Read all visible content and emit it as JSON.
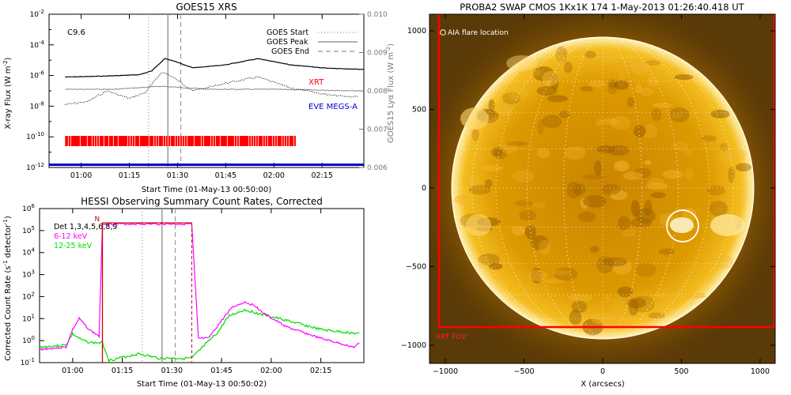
{
  "goes_panel": {
    "title": "GOES15 XRS",
    "flare_class": "C9.6",
    "xlabel": "Start Time (01-May-13 00:50:00)",
    "ylabel_left": "X-ray Flux (W m",
    "ylabel_left_sup": "-2",
    "ylabel_right": "GOES15 Lyα Flux (W m",
    "ylabel_right_sup": "-2",
    "left_ticks": [
      {
        "base": "10",
        "exp": "-2",
        "v": -2
      },
      {
        "base": "10",
        "exp": "-4",
        "v": -4
      },
      {
        "base": "10",
        "exp": "-6",
        "v": -6
      },
      {
        "base": "10",
        "exp": "-8",
        "v": -8
      },
      {
        "base": "10",
        "exp": "-10",
        "v": -10
      },
      {
        "base": "10",
        "exp": "-12",
        "v": -12
      }
    ],
    "right_ticks": [
      "0.010",
      "0.009",
      "0.008",
      "0.007",
      "0.006"
    ],
    "x_ticks": [
      "01:00",
      "01:15",
      "01:30",
      "01:45",
      "02:00",
      "02:15"
    ],
    "legend": [
      {
        "label": "GOES Start",
        "style": "dotted"
      },
      {
        "label": "GOES Peak",
        "style": "solid"
      },
      {
        "label": "GOES End",
        "style": "dashed"
      }
    ],
    "labels": {
      "xrt": "XRT",
      "eve": "EVE MEGS-A"
    },
    "colors": {
      "xrt": "#ff0000",
      "eve": "#0000cc",
      "lya": "#888888",
      "flux": "#000000"
    }
  },
  "hessi_panel": {
    "title": "HESSI Observing Summary Count Rates, Corrected",
    "xlabel": "Start Time (01-May-13 00:50:02)",
    "ylabel": "Corrected Count Rate (s",
    "ylabel_sup": "-1",
    "ylabel_tail": " detector",
    "ylabel_tail_sup": "-1",
    "y_ticks": [
      {
        "base": "10",
        "exp": "6",
        "v": 6
      },
      {
        "base": "10",
        "exp": "5",
        "v": 5
      },
      {
        "base": "10",
        "exp": "4",
        "v": 4
      },
      {
        "base": "10",
        "exp": "3",
        "v": 3
      },
      {
        "base": "10",
        "exp": "2",
        "v": 2
      },
      {
        "base": "10",
        "exp": "1",
        "v": 1
      },
      {
        "base": "10",
        "exp": "0",
        "v": 0
      },
      {
        "base": "10",
        "exp": "-1",
        "v": -1
      }
    ],
    "x_ticks": [
      "01:00",
      "01:15",
      "01:30",
      "01:45",
      "02:00",
      "02:15"
    ],
    "legend": [
      {
        "label": "Det 1,3,4,5,6,8,9",
        "color": "#000000"
      },
      {
        "label": "6-12 keV",
        "color": "#ff00ff"
      },
      {
        "label": "12-25 keV",
        "color": "#00dd00"
      }
    ],
    "night_label": "N",
    "colors": {
      "low": "#ff00ff",
      "high": "#00dd00",
      "flag": "#cc0000"
    }
  },
  "swap_panel": {
    "title": "PROBA2 SWAP CMOS 1Kx1K 174  1-May-2013 01:26:40.418 UT",
    "aia_label": "AIA flare location",
    "xrt_label": "XRT FOV",
    "xlabel": "X (arcsecs)",
    "x_ticks": [
      "−1000",
      "−500",
      "0",
      "500",
      "1000"
    ],
    "y_ticks": [
      "1000",
      "500",
      "0",
      "−500",
      "−1000"
    ],
    "colors": {
      "sun": "#e8a500",
      "xrt_box": "#ff0000"
    }
  },
  "chart_data": [
    {
      "type": "line",
      "title": "GOES15 XRS",
      "xlabel": "Start Time (01-May-13 00:50:00)",
      "ylabel": "X-ray Flux (W m-2)",
      "x_range": [
        "00:50",
        "02:28"
      ],
      "ylim_log10": [
        -12,
        -2
      ],
      "y2lim": [
        0.006,
        0.01
      ],
      "y2label": "GOES15 Lyα Flux (W m-2)",
      "annotation": "C9.6",
      "event_times": {
        "goes_start": "01:21",
        "goes_peak": "01:27",
        "goes_end": "01:31"
      },
      "series": [
        {
          "name": "",
          "style": "black solid",
          "x": [
            "00:55",
            "01:05",
            "01:12",
            "01:18",
            "01:22",
            "01:26",
            "01:28",
            "01:35",
            "01:45",
            "01:55",
            "02:05",
            "02:15",
            "02:28"
          ],
          "y_log10": [
            -6.1,
            -6.05,
            -6.0,
            -5.95,
            -5.7,
            -4.9,
            -5.0,
            -5.5,
            -5.3,
            -4.9,
            -5.3,
            -5.5,
            -5.6
          ]
        },
        {
          "name": "",
          "style": "black dotted",
          "x": [
            "00:55",
            "01:02",
            "01:08",
            "01:15",
            "01:20",
            "01:25",
            "01:27",
            "01:35",
            "01:45",
            "01:55",
            "02:05",
            "02:15",
            "02:26"
          ],
          "y_log10": [
            -7.9,
            -7.7,
            -7.0,
            -7.5,
            -7.1,
            -5.8,
            -5.9,
            -7.0,
            -6.5,
            -6.1,
            -6.8,
            -7.2,
            -7.4
          ]
        },
        {
          "name": "",
          "style": "gray dashed",
          "x": [
            "00:55",
            "01:10",
            "01:25",
            "01:40",
            "02:00",
            "02:28"
          ],
          "y_log10": [
            -6.9,
            -6.9,
            -6.7,
            -6.9,
            -6.9,
            -7.0
          ]
        }
      ],
      "coverage": [
        {
          "name": "XRT",
          "from": "00:55",
          "to": "02:07"
        },
        {
          "name": "EVE MEGS-A",
          "from": "00:50",
          "to": "02:28"
        }
      ]
    },
    {
      "type": "line",
      "title": "HESSI Observing Summary Count Rates, Corrected",
      "xlabel": "Start Time (01-May-13 00:50:02)",
      "ylabel": "Corrected Count Rate (s-1 detector-1)",
      "x_range": [
        "00:50",
        "02:28"
      ],
      "ylim_log10": [
        -1,
        6
      ],
      "flag_intervals": [
        {
          "label": "N",
          "from": "01:09",
          "to": "01:36"
        }
      ],
      "series": [
        {
          "name": "6-12 keV",
          "x": [
            "00:50",
            "00:58",
            "01:00",
            "01:02",
            "01:05",
            "01:08",
            "01:09",
            "01:36",
            "01:38",
            "01:41",
            "01:44",
            "01:48",
            "01:52",
            "01:55",
            "01:58",
            "02:05",
            "02:15",
            "02:25",
            "02:27"
          ],
          "y_log10": [
            -0.4,
            -0.3,
            0.5,
            1.0,
            0.5,
            0.2,
            5.3,
            5.3,
            0.1,
            0.1,
            0.7,
            1.5,
            1.75,
            1.6,
            1.2,
            0.6,
            0.1,
            -0.3,
            -0.1
          ]
        },
        {
          "name": "12-25 keV",
          "x": [
            "00:50",
            "00:58",
            "01:00",
            "01:03",
            "01:06",
            "01:09",
            "01:11",
            "01:20",
            "01:26",
            "01:36",
            "01:40",
            "01:44",
            "01:47",
            "01:52",
            "01:57",
            "02:05",
            "02:15",
            "02:27"
          ],
          "y_log10": [
            -0.3,
            -0.2,
            0.3,
            0.0,
            -0.1,
            -0.1,
            -0.9,
            -0.6,
            -0.8,
            -0.8,
            -0.2,
            0.4,
            1.1,
            1.4,
            1.2,
            0.9,
            0.5,
            0.3
          ]
        }
      ]
    }
  ]
}
